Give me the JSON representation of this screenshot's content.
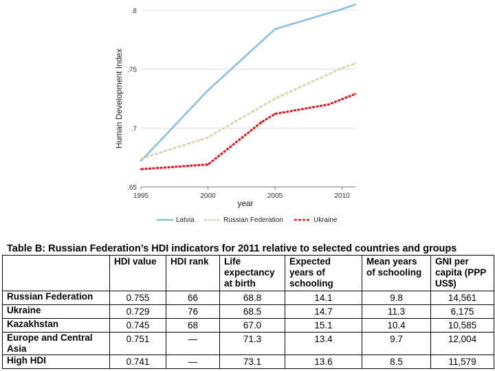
{
  "chart_data": {
    "type": "line",
    "xlabel": "year",
    "ylabel": "Human Development Index",
    "x_ticks": [
      "1995",
      "2000",
      "2005",
      "2010"
    ],
    "y_ticks": [
      ".65",
      ".7",
      ".75",
      ".8"
    ],
    "y_tick_values": [
      0.65,
      0.7,
      0.75,
      0.8
    ],
    "xlim": [
      1995,
      2011
    ],
    "ylim": [
      0.65,
      0.8
    ],
    "grid": true,
    "legend_position": "bottom",
    "series": [
      {
        "name": "Latvia",
        "color": "#8bbfdf",
        "style": "solid",
        "x": [
          1995,
          2000,
          2005,
          2010,
          2011
        ],
        "y": [
          0.672,
          0.732,
          0.784,
          0.801,
          0.805
        ]
      },
      {
        "name": "Russian Federation",
        "color": "#d6d7ad",
        "style": "dashed",
        "x": [
          1995,
          2000,
          2005,
          2010,
          2011
        ],
        "y": [
          0.674,
          0.692,
          0.725,
          0.751,
          0.755
        ]
      },
      {
        "name": "Ukraine",
        "color": "#e0141e",
        "style": "dashed",
        "x": [
          1995,
          2000,
          2004,
          2005,
          2009,
          2011
        ],
        "y": [
          0.665,
          0.669,
          0.705,
          0.712,
          0.72,
          0.729
        ]
      }
    ]
  },
  "table": {
    "title": "Table B:  Russian Federation’s HDI indicators for 2011 relative to selected countries and groups",
    "headers": [
      "",
      "HDI value",
      "HDI rank",
      "Life expectancy at birth",
      "Expected years of schooling",
      "Mean years of schooling",
      "GNI per capita (PPP US$)"
    ],
    "rows": [
      [
        "Russian Federation",
        "0.755",
        "66",
        "68.8",
        "14.1",
        "9.8",
        "14,561"
      ],
      [
        "Ukraine",
        "0.729",
        "76",
        "68.5",
        "14.7",
        "11.3",
        "6,175"
      ],
      [
        "Kazakhstan",
        "0.745",
        "68",
        "67.0",
        "15.1",
        "10.4",
        "10,585"
      ],
      [
        "Europe and Central Asia",
        "0.751",
        "—",
        "71.3",
        "13.4",
        "9.7",
        "12,004"
      ],
      [
        "High HDI",
        "0.741",
        "—",
        "73.1",
        "13.6",
        "8.5",
        "11,579"
      ]
    ]
  }
}
